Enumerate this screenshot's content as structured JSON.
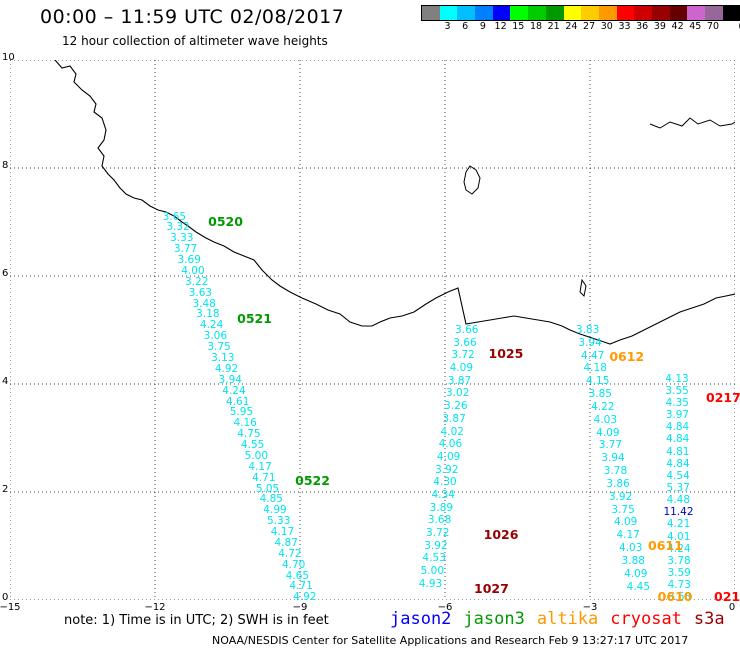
{
  "title": "00:00 – 11:59 UTC 02/08/2017",
  "subtitle": "12 hour collection of altimeter wave heights",
  "scale": {
    "unit": "(ft)",
    "bins": [
      {
        "label": "",
        "color": "#808080"
      },
      {
        "label": "3",
        "color": "#00ffff"
      },
      {
        "label": "6",
        "color": "#00bfff"
      },
      {
        "label": "9",
        "color": "#0080ff"
      },
      {
        "label": "12",
        "color": "#0000ff"
      },
      {
        "label": "15",
        "color": "#00ff00"
      },
      {
        "label": "18",
        "color": "#00cc00"
      },
      {
        "label": "21",
        "color": "#009900"
      },
      {
        "label": "24",
        "color": "#ffff00"
      },
      {
        "label": "27",
        "color": "#ffcc00"
      },
      {
        "label": "30",
        "color": "#ff9900"
      },
      {
        "label": "33",
        "color": "#ff0000"
      },
      {
        "label": "36",
        "color": "#cc0000"
      },
      {
        "label": "39",
        "color": "#990000"
      },
      {
        "label": "42",
        "color": "#660000"
      },
      {
        "label": "45",
        "color": "#cc66cc"
      },
      {
        "label": "70",
        "color": "#996699"
      },
      {
        "label": "",
        "color": "#000000"
      }
    ]
  },
  "axes": {
    "x_ticks": [
      "−15",
      "−12",
      "−9",
      "−6",
      "−3",
      "0"
    ],
    "y_ticks": [
      "0",
      "2",
      "4",
      "6",
      "8",
      "10"
    ],
    "x_range": [
      -15,
      0
    ],
    "y_range": [
      0,
      10
    ],
    "grid": "dotted"
  },
  "note": "note: 1) Time is in UTC; 2) SWH is in feet",
  "satellites": [
    {
      "name": "jason2",
      "color": "#0000ff"
    },
    {
      "name": "jason3",
      "color": "#009900"
    },
    {
      "name": "altika",
      "color": "#ff9900"
    },
    {
      "name": "cryosat",
      "color": "#ff0000"
    },
    {
      "name": "s3a",
      "color": "#990000"
    }
  ],
  "footer": "NOAA/NESDIS Center for Satellite Applications and Research   Feb  9 13:27:17 UTC 2017",
  "track_labels": [
    {
      "text": "0520",
      "lon": -10.9,
      "lat": 7.0,
      "color": "#009900"
    },
    {
      "text": "0521",
      "lon": -10.3,
      "lat": 5.2,
      "color": "#009900"
    },
    {
      "text": "0522",
      "lon": -9.1,
      "lat": 2.2,
      "color": "#009900"
    },
    {
      "text": "1025",
      "lon": -5.1,
      "lat": 4.55,
      "color": "#990000"
    },
    {
      "text": "1026",
      "lon": -5.2,
      "lat": 1.2,
      "color": "#990000"
    },
    {
      "text": "1027",
      "lon": -5.4,
      "lat": 0.2,
      "color": "#990000"
    },
    {
      "text": "0612",
      "lon": -2.6,
      "lat": 4.5,
      "color": "#ff9900"
    },
    {
      "text": "0611",
      "lon": -1.8,
      "lat": 1.0,
      "color": "#ff9900"
    },
    {
      "text": "0610",
      "lon": -1.6,
      "lat": 0.05,
      "color": "#ff9900"
    },
    {
      "text": "0217",
      "lon": -0.6,
      "lat": 3.75,
      "color": "#ff0000"
    },
    {
      "text": "021",
      "lon": -0.1,
      "lat": 0.05,
      "color": "#ff0000"
    }
  ],
  "tracks": [
    {
      "satellite": "jason3",
      "color": "#00e5ee",
      "lat_start": 7.1,
      "lat_end": 0.05,
      "lon_start": -11.6,
      "lon_end": -8.9,
      "values": [
        "3.65",
        "3.32",
        "3.33",
        "3.77",
        "3.69",
        "4.00",
        "3.22",
        "3.63",
        "3.48",
        "3.18",
        "4.24",
        "3.06",
        "3.75",
        "3.13",
        "4.92",
        "3.94",
        "4.24",
        "4.61",
        "5.95",
        "4.16",
        "4.75",
        "4.55",
        "5.00",
        "4.17",
        "4.71",
        "5.05",
        "4.85",
        "4.99",
        "5.33",
        "4.17",
        "4.87",
        "4.72",
        "4.70",
        "4.65",
        "4.71",
        "4.92"
      ]
    },
    {
      "satellite": "s3a",
      "color": "#00e5ee",
      "lat_start": 5.0,
      "lat_end": 0.3,
      "lon_start": -5.55,
      "lon_end": -6.3,
      "values": [
        "3.66",
        "3.66",
        "3.72",
        "4.09",
        "3.87",
        "3.02",
        "3.26",
        "3.87",
        "4.02",
        "4.06",
        "4.09",
        "3.92",
        "4.30",
        "4.34",
        "3.89",
        "3.68",
        "3.72",
        "3.92",
        "4.53",
        "5.00",
        "4.93"
      ]
    },
    {
      "satellite": "altika",
      "color": "#00e5ee",
      "lat_start": 5.0,
      "lat_end": 0.25,
      "lon_start": -3.05,
      "lon_end": -2.0,
      "values": [
        "3.83",
        "3.94",
        "4.47",
        "4.18",
        "4.15",
        "3.85",
        "4.22",
        "4.03",
        "4.09",
        "3.77",
        "3.94",
        "3.78",
        "3.86",
        "3.92",
        "3.75",
        "4.09",
        "4.17",
        "4.03",
        "3.88",
        "4.09",
        "4.45"
      ]
    },
    {
      "satellite": "cryosat",
      "color": "#00e5ee",
      "lat_start": 4.1,
      "lat_end": 0.05,
      "lon_start": -1.2,
      "lon_end": -1.15,
      "values": [
        "4.13",
        "3.55",
        "4.35",
        "3.97",
        "4.84",
        "4.84",
        "4.81",
        "4.84",
        "4.54",
        "5.37",
        "4.48",
        "11.42",
        "4.21",
        "4.01",
        "4.24",
        "3.78",
        "3.59",
        "4.73",
        "3.68"
      ]
    }
  ]
}
